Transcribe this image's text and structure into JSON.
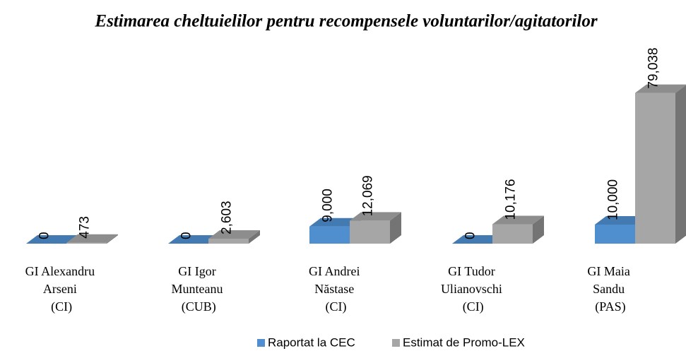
{
  "chart_data": {
    "type": "bar3d",
    "title": "Estimarea cheltuielilor pentru recompensele voluntarilor/agitatorilor",
    "categories": [
      "GI Alexandru Arseni (CI)",
      "GI Igor Munteanu (CUB)",
      "GI Andrei Năstase (CI)",
      "GI Tudor Ulianovschi (CI)",
      "GI Maia Sandu (PAS)"
    ],
    "series": [
      {
        "name": "Raportat la CEC",
        "color": "#4f8fd0",
        "values": [
          0,
          0,
          9000,
          0,
          10000
        ],
        "value_labels": [
          "0",
          "0",
          "9,000",
          "0",
          "10,000"
        ]
      },
      {
        "name": "Estimat de Promo-LEX",
        "color": "#a6a6a6",
        "values": [
          473,
          2603,
          12069,
          10176,
          79038
        ],
        "value_labels": [
          "473",
          "2,603",
          "12,069",
          "10,176",
          "79,038"
        ]
      }
    ],
    "ylim": [
      0,
      80000
    ],
    "legend": "bottom"
  }
}
